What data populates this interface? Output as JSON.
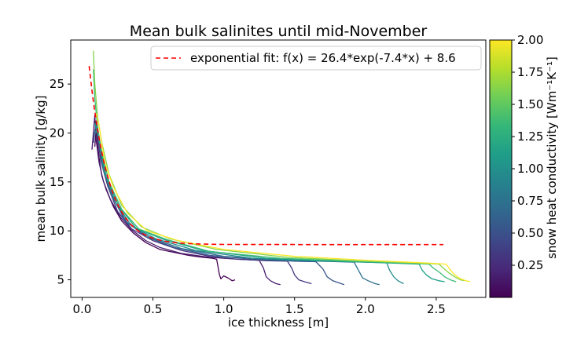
{
  "chart_data": {
    "type": "line",
    "title": "Mean bulk salinites until mid-November",
    "xlabel": "ice thickness [m]",
    "ylabel": "mean bulk salinity [g/kg]",
    "xlim": [
      -0.08,
      2.85
    ],
    "ylim": [
      3.2,
      29.5
    ],
    "xticks": [
      0.0,
      0.5,
      1.0,
      1.5,
      2.0,
      2.5
    ],
    "xtick_labels": [
      "0.0",
      "0.5",
      "1.0",
      "1.5",
      "2.0",
      "2.5"
    ],
    "yticks": [
      5,
      10,
      15,
      20,
      25
    ],
    "ytick_labels": [
      "5",
      "10",
      "15",
      "20",
      "25"
    ],
    "grid": false,
    "legend": {
      "placement": "top-right",
      "entries": [
        {
          "label": "exponential fit: f(x) = 26.4*exp(-7.4*x) + 8.6",
          "color": "#ff0000",
          "style": "dashed"
        }
      ]
    },
    "fit": {
      "formula": "26.4*exp(-7.4*x) + 8.6",
      "a": 26.4,
      "b": -7.4,
      "c": 8.6,
      "x_range": [
        0.05,
        2.55
      ],
      "color": "#ff0000"
    },
    "colorbar": {
      "label": "snow heat conductivity [Wm⁻¹K⁻¹]",
      "colormap": "viridis",
      "range": [
        0.0,
        2.0
      ],
      "ticks": [
        0.25,
        0.5,
        0.75,
        1.0,
        1.25,
        1.5,
        1.75,
        2.0
      ],
      "tick_labels": [
        "0.25",
        "0.50",
        "0.75",
        "1.00",
        "1.25",
        "1.50",
        "1.75",
        "2.00"
      ],
      "colors": [
        "#440154",
        "#482878",
        "#3e4989",
        "#31688e",
        "#26828e",
        "#1f9e89",
        "#35b779",
        "#6ece58",
        "#b5de2b",
        "#fde725"
      ]
    },
    "series": [
      {
        "k": 0.05,
        "color": "#440154",
        "points": [
          [
            0.09,
            18.6
          ],
          [
            0.1,
            20.5
          ],
          [
            0.11,
            18.9
          ],
          [
            0.12,
            17.5
          ],
          [
            0.14,
            15.6
          ],
          [
            0.17,
            14.2
          ],
          [
            0.22,
            12.5
          ],
          [
            0.28,
            11.0
          ],
          [
            0.36,
            9.8
          ],
          [
            0.45,
            8.8
          ],
          [
            0.55,
            8.1
          ],
          [
            0.65,
            7.8
          ],
          [
            0.75,
            7.5
          ],
          [
            0.85,
            7.3
          ],
          [
            0.92,
            7.2
          ],
          [
            0.95,
            7.1
          ],
          [
            0.96,
            6.3
          ],
          [
            0.97,
            5.5
          ],
          [
            0.98,
            5.1
          ],
          [
            1.0,
            5.4
          ],
          [
            1.03,
            5.2
          ],
          [
            1.06,
            4.9
          ],
          [
            1.08,
            5.0
          ]
        ]
      },
      {
        "k": 0.25,
        "color": "#481c6e",
        "points": [
          [
            0.07,
            18.3
          ],
          [
            0.09,
            21.8
          ],
          [
            0.1,
            19.2
          ],
          [
            0.12,
            17.0
          ],
          [
            0.15,
            15.1
          ],
          [
            0.2,
            13.2
          ],
          [
            0.27,
            11.4
          ],
          [
            0.35,
            10.1
          ],
          [
            0.45,
            9.0
          ],
          [
            0.55,
            8.3
          ],
          [
            0.7,
            7.7
          ],
          [
            0.9,
            7.3
          ],
          [
            1.1,
            7.1
          ],
          [
            1.25,
            7.0
          ],
          [
            1.28,
            6.2
          ],
          [
            1.3,
            5.3
          ],
          [
            1.33,
            4.9
          ],
          [
            1.37,
            4.6
          ],
          [
            1.4,
            4.5
          ]
        ]
      },
      {
        "k": 0.4,
        "color": "#453781",
        "points": [
          [
            0.08,
            19.0
          ],
          [
            0.1,
            21.2
          ],
          [
            0.13,
            17.3
          ],
          [
            0.18,
            14.6
          ],
          [
            0.25,
            12.0
          ],
          [
            0.35,
            10.2
          ],
          [
            0.5,
            9.0
          ],
          [
            0.7,
            8.0
          ],
          [
            0.9,
            7.4
          ],
          [
            1.1,
            7.1
          ],
          [
            1.3,
            6.95
          ],
          [
            1.45,
            6.9
          ],
          [
            1.48,
            6.2
          ],
          [
            1.5,
            5.5
          ],
          [
            1.53,
            5.0
          ],
          [
            1.57,
            4.8
          ],
          [
            1.62,
            4.6
          ]
        ]
      },
      {
        "k": 0.55,
        "color": "#39568c",
        "points": [
          [
            0.08,
            19.2
          ],
          [
            0.1,
            21.0
          ],
          [
            0.14,
            16.8
          ],
          [
            0.2,
            13.9
          ],
          [
            0.3,
            11.1
          ],
          [
            0.45,
            9.4
          ],
          [
            0.65,
            8.3
          ],
          [
            0.9,
            7.5
          ],
          [
            1.2,
            7.1
          ],
          [
            1.5,
            6.9
          ],
          [
            1.65,
            6.85
          ],
          [
            1.7,
            6.1
          ],
          [
            1.73,
            5.3
          ],
          [
            1.77,
            4.9
          ],
          [
            1.81,
            4.7
          ],
          [
            1.85,
            4.5
          ]
        ]
      },
      {
        "k": 0.75,
        "color": "#2d708e",
        "points": [
          [
            0.09,
            19.8
          ],
          [
            0.11,
            20.6
          ],
          [
            0.15,
            16.3
          ],
          [
            0.22,
            13.3
          ],
          [
            0.32,
            10.8
          ],
          [
            0.48,
            9.3
          ],
          [
            0.7,
            8.2
          ],
          [
            1.0,
            7.4
          ],
          [
            1.4,
            7.0
          ],
          [
            1.8,
            6.85
          ],
          [
            1.92,
            6.8
          ],
          [
            1.95,
            6.0
          ],
          [
            1.98,
            5.2
          ],
          [
            2.02,
            4.9
          ],
          [
            2.07,
            4.6
          ],
          [
            2.1,
            4.5
          ]
        ]
      },
      {
        "k": 1.0,
        "color": "#238a8d",
        "points": [
          [
            0.09,
            20.2
          ],
          [
            0.11,
            20.0
          ],
          [
            0.16,
            15.9
          ],
          [
            0.24,
            12.8
          ],
          [
            0.35,
            10.5
          ],
          [
            0.52,
            9.2
          ],
          [
            0.8,
            8.0
          ],
          [
            1.2,
            7.2
          ],
          [
            1.6,
            6.95
          ],
          [
            2.0,
            6.8
          ],
          [
            2.15,
            6.75
          ],
          [
            2.17,
            6.0
          ],
          [
            2.2,
            5.3
          ],
          [
            2.23,
            4.9
          ],
          [
            2.27,
            4.6
          ]
        ]
      },
      {
        "k": 1.25,
        "color": "#1fa088",
        "points": [
          [
            0.09,
            21.0
          ],
          [
            0.12,
            19.4
          ],
          [
            0.17,
            15.6
          ],
          [
            0.26,
            12.5
          ],
          [
            0.38,
            10.3
          ],
          [
            0.56,
            9.2
          ],
          [
            0.85,
            8.0
          ],
          [
            1.3,
            7.2
          ],
          [
            1.8,
            6.9
          ],
          [
            2.2,
            6.7
          ],
          [
            2.38,
            6.6
          ],
          [
            2.4,
            6.0
          ],
          [
            2.43,
            5.5
          ],
          [
            2.47,
            5.1
          ],
          [
            2.52,
            4.9
          ],
          [
            2.56,
            4.8
          ]
        ]
      },
      {
        "k": 1.5,
        "color": "#3bbb75",
        "points": [
          [
            0.08,
            26.5
          ],
          [
            0.09,
            23.5
          ],
          [
            0.11,
            20.5
          ],
          [
            0.14,
            18.0
          ],
          [
            0.19,
            15.0
          ],
          [
            0.28,
            12.2
          ],
          [
            0.4,
            10.2
          ],
          [
            0.6,
            9.1
          ],
          [
            0.9,
            7.9
          ],
          [
            1.4,
            7.2
          ],
          [
            1.9,
            6.9
          ],
          [
            2.3,
            6.7
          ],
          [
            2.45,
            6.6
          ],
          [
            2.48,
            6.2
          ],
          [
            2.52,
            5.8
          ],
          [
            2.56,
            5.3
          ],
          [
            2.6,
            5.0
          ],
          [
            2.64,
            4.8
          ]
        ]
      },
      {
        "k": 1.75,
        "color": "#84d44b",
        "points": [
          [
            0.08,
            28.4
          ],
          [
            0.09,
            25.0
          ],
          [
            0.11,
            21.6
          ],
          [
            0.14,
            19.0
          ],
          [
            0.19,
            15.8
          ],
          [
            0.28,
            12.6
          ],
          [
            0.42,
            10.4
          ],
          [
            0.62,
            9.2
          ],
          [
            0.95,
            8.1
          ],
          [
            1.45,
            7.3
          ],
          [
            2.0,
            6.9
          ],
          [
            2.4,
            6.7
          ],
          [
            2.52,
            6.6
          ],
          [
            2.55,
            6.2
          ],
          [
            2.59,
            5.7
          ],
          [
            2.63,
            5.3
          ],
          [
            2.67,
            5.0
          ],
          [
            2.7,
            4.9
          ]
        ]
      },
      {
        "k": 2.0,
        "color": "#fde725",
        "points": [
          [
            0.1,
            22.0
          ],
          [
            0.12,
            20.8
          ],
          [
            0.16,
            17.0
          ],
          [
            0.22,
            14.5
          ],
          [
            0.32,
            11.8
          ],
          [
            0.46,
            10.0
          ],
          [
            0.68,
            9.0
          ],
          [
            1.0,
            8.1
          ],
          [
            1.5,
            7.4
          ],
          [
            2.0,
            7.0
          ],
          [
            2.45,
            6.7
          ],
          [
            2.57,
            6.6
          ],
          [
            2.6,
            6.0
          ],
          [
            2.63,
            5.5
          ],
          [
            2.67,
            5.1
          ],
          [
            2.71,
            4.9
          ],
          [
            2.74,
            4.8
          ]
        ]
      }
    ]
  }
}
